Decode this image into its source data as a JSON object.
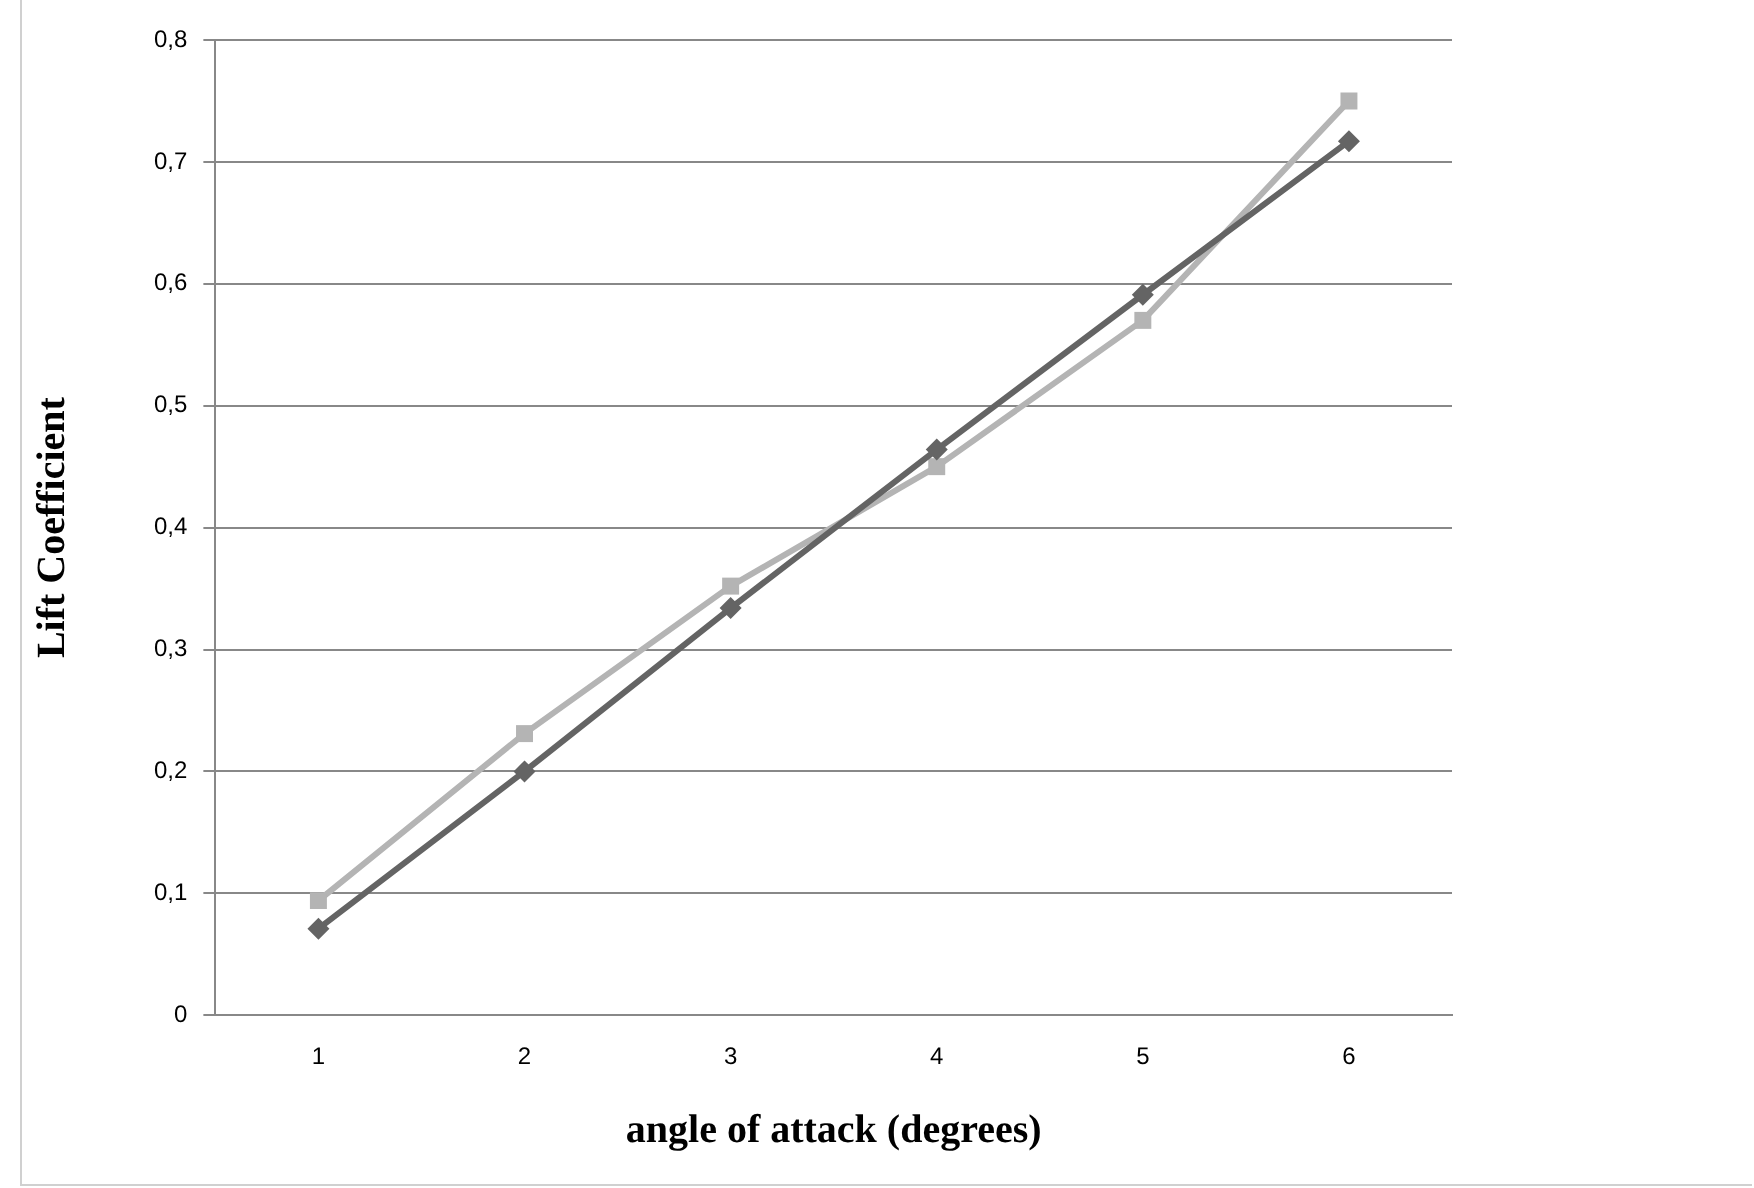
{
  "chart_data": {
    "type": "line",
    "xlabel": "angle of attack (degrees)",
    "ylabel": "Lift Coefficient",
    "categories": [
      "1",
      "2",
      "3",
      "4",
      "5",
      "6"
    ],
    "series": [
      {
        "color": "#646464",
        "marker": "diamond",
        "values": [
          0.071,
          0.2,
          0.334,
          0.464,
          0.591,
          0.717
        ]
      },
      {
        "color": "#b4b4b4",
        "marker": "square",
        "values": [
          0.094,
          0.231,
          0.352,
          0.45,
          0.57,
          0.75
        ]
      }
    ],
    "ylim": [
      0,
      0.8
    ],
    "yticks": [
      {
        "value": 0,
        "label": "0"
      },
      {
        "value": 0.1,
        "label": "0,1"
      },
      {
        "value": 0.2,
        "label": "0,2"
      },
      {
        "value": 0.3,
        "label": "0,3"
      },
      {
        "value": 0.4,
        "label": "0,4"
      },
      {
        "value": 0.5,
        "label": "0,5"
      },
      {
        "value": 0.6,
        "label": "0,6"
      },
      {
        "value": 0.7,
        "label": "0,7"
      },
      {
        "value": 0.8,
        "label": "0,8"
      }
    ],
    "grid": "y",
    "legend": false
  }
}
